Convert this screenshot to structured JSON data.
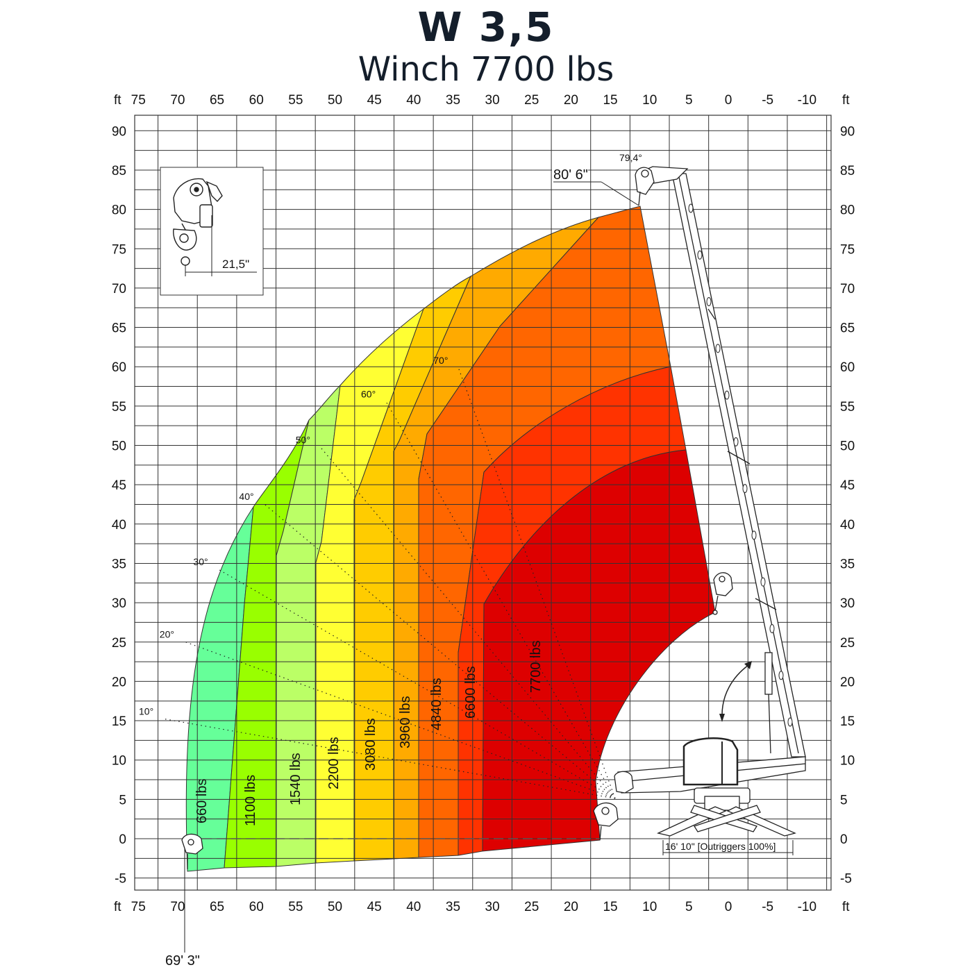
{
  "title": "W  3,5",
  "subtitle": "Winch  7700 lbs",
  "chart_data": {
    "type": "area",
    "x_unit": "ft",
    "y_unit": "ft",
    "x_ticks": [
      75,
      70,
      65,
      60,
      55,
      50,
      45,
      40,
      35,
      30,
      25,
      20,
      15,
      10,
      5,
      0,
      -5,
      -10
    ],
    "y_ticks": [
      90,
      85,
      80,
      75,
      70,
      65,
      60,
      55,
      50,
      45,
      40,
      35,
      30,
      25,
      20,
      15,
      10,
      5,
      0,
      -5
    ],
    "xlim": [
      75,
      -10
    ],
    "ylim": [
      -5,
      90
    ],
    "grid": true,
    "load_zones": [
      {
        "label": "660 lbs",
        "color": "#66ff99"
      },
      {
        "label": "1100 lbs",
        "color": "#99ff00"
      },
      {
        "label": "1540 lbs",
        "color": "#bbff66"
      },
      {
        "label": "2200 lbs",
        "color": "#ffff33"
      },
      {
        "label": "3080 lbs",
        "color": "#ffcc00"
      },
      {
        "label": "3960 lbs",
        "color": "#ffaa00"
      },
      {
        "label": "4840 lbs",
        "color": "#ff6600"
      },
      {
        "label": "6600 lbs",
        "color": "#ff3300"
      },
      {
        "label": "7700 lbs",
        "color": "#dd0000"
      }
    ],
    "angle_lines": [
      {
        "label": "10°",
        "angle": 10
      },
      {
        "label": "20°",
        "angle": 20
      },
      {
        "label": "30°",
        "angle": 30
      },
      {
        "label": "40°",
        "angle": 40
      },
      {
        "label": "50°",
        "angle": 50
      },
      {
        "label": "60°",
        "angle": 60
      },
      {
        "label": "70°",
        "angle": 70
      }
    ],
    "max_angle_label": "79,4°",
    "max_height_label": "80' 6\"",
    "max_reach_label": "69' 3\"",
    "hook_offset_label": "21,5\"",
    "outrigger_label": "16' 10\" [Outriggers 100%]"
  }
}
